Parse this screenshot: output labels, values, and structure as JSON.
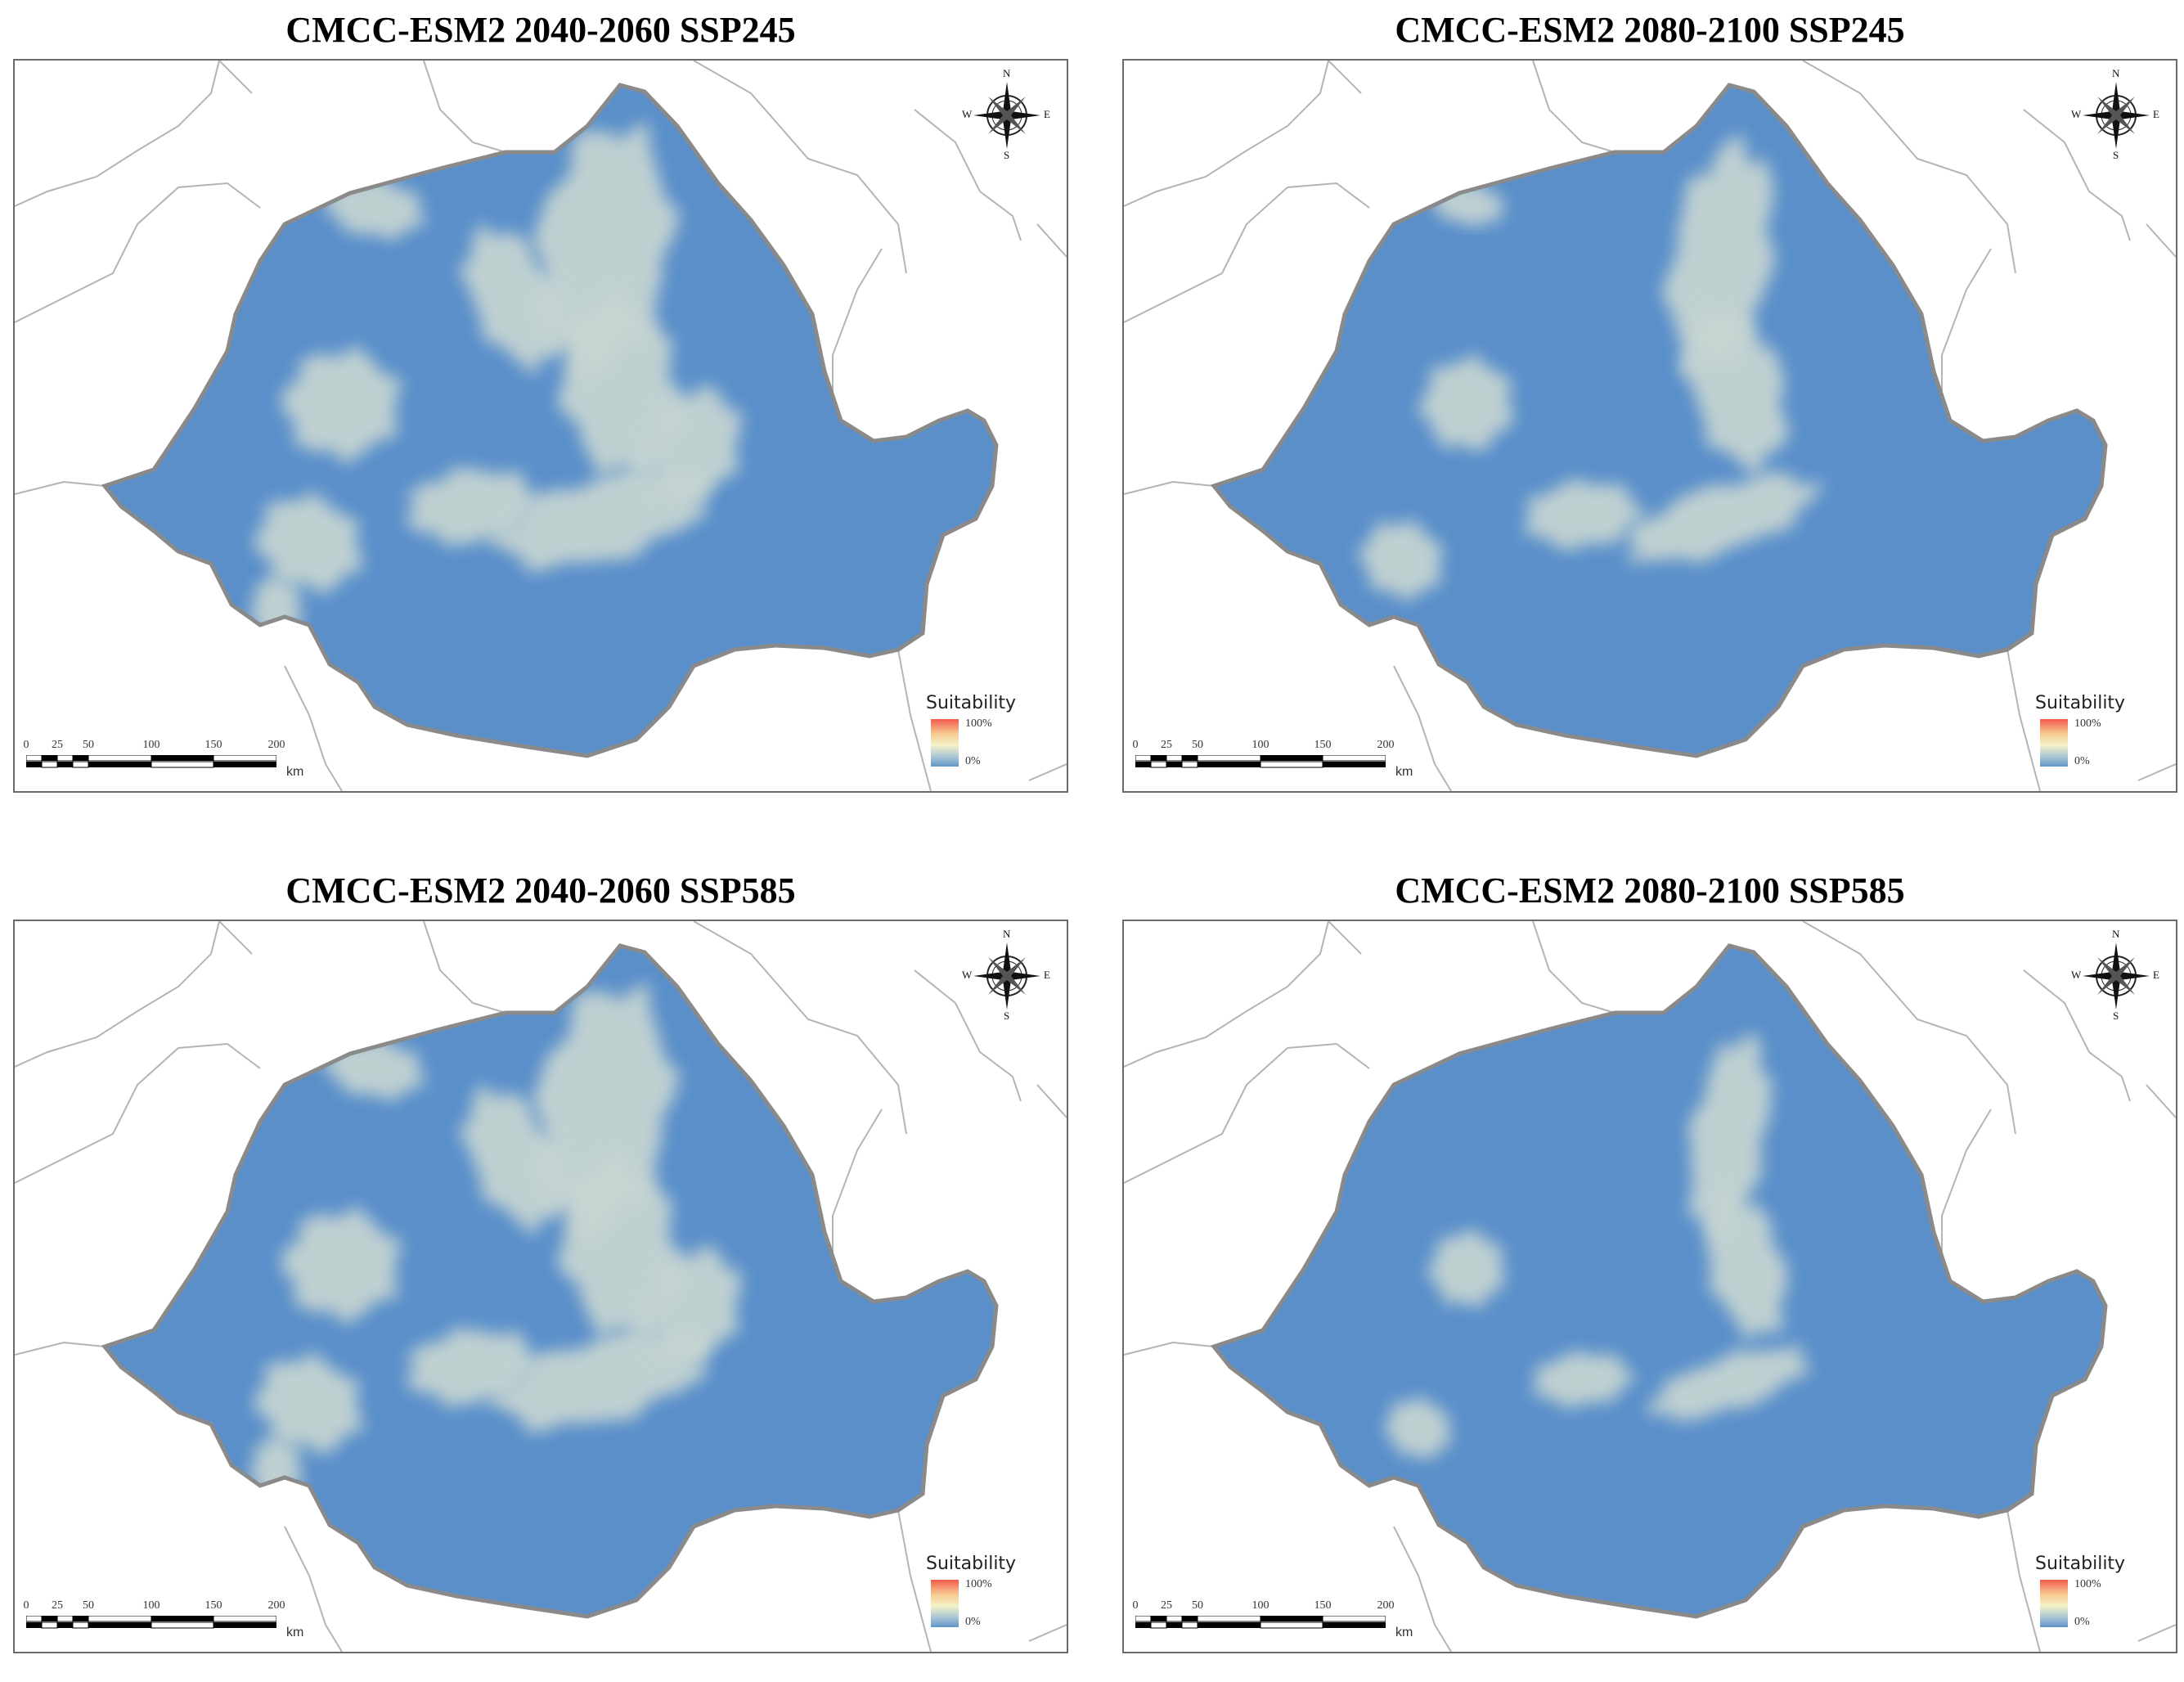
{
  "figure": {
    "legend_title": "Suitability",
    "legend_max": "100%",
    "legend_min": "0%",
    "legend_colors": {
      "high": "#f25a4c",
      "mid": "#f4f2c8",
      "low": "#5f96c6"
    },
    "scale_labels": [
      "0",
      "25",
      "50",
      "100",
      "150",
      "200"
    ],
    "scale_unit": "km",
    "compass": {
      "n": "N",
      "s": "S",
      "e": "E",
      "w": "W"
    },
    "colors": {
      "unsuitable": "#5a8fca",
      "suitable": "#c8d6d2",
      "border": "#8a8a8a",
      "neighbor_border": "#b4b4b4"
    }
  },
  "panels": [
    {
      "title": "CMCC-ESM2 2040-2060 SSP245",
      "extent": "large"
    },
    {
      "title": "CMCC-ESM2 2080-2100 SSP245",
      "extent": "medium"
    },
    {
      "title": "CMCC-ESM2 2040-2060 SSP585",
      "extent": "large"
    },
    {
      "title": "CMCC-ESM2 2080-2100 SSP585",
      "extent": "small"
    }
  ]
}
